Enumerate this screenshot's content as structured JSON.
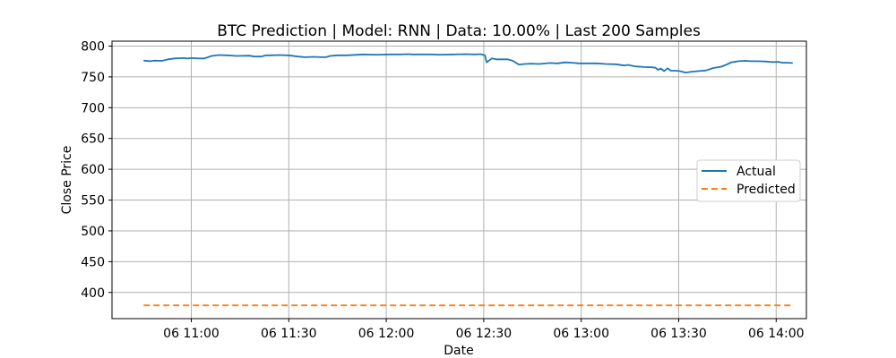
{
  "chart_data": {
    "type": "line",
    "title": "BTC Prediction | Model: RNN | Data: 10.00% | Last 200 Samples",
    "xlabel": "Date",
    "ylabel": "Close Price",
    "x_unit": "minutes after 06 10:00",
    "xlim": [
      35.6,
      249.3
    ],
    "ylim": [
      357.5,
      808
    ],
    "grid": true,
    "legend_position": "center-right",
    "x_ticks": [
      {
        "value": 60,
        "label": "06 11:00"
      },
      {
        "value": 90,
        "label": "06 11:30"
      },
      {
        "value": 120,
        "label": "06 12:00"
      },
      {
        "value": 150,
        "label": "06 12:30"
      },
      {
        "value": 180,
        "label": "06 13:00"
      },
      {
        "value": 210,
        "label": "06 13:30"
      },
      {
        "value": 240,
        "label": "06 14:00"
      }
    ],
    "y_ticks": [
      {
        "value": 400,
        "label": "400"
      },
      {
        "value": 450,
        "label": "450"
      },
      {
        "value": 500,
        "label": "500"
      },
      {
        "value": 550,
        "label": "550"
      },
      {
        "value": 600,
        "label": "600"
      },
      {
        "value": 650,
        "label": "650"
      },
      {
        "value": 700,
        "label": "700"
      },
      {
        "value": 750,
        "label": "750"
      },
      {
        "value": 800,
        "label": "800"
      }
    ],
    "series": [
      {
        "name": "Actual",
        "color": "#1f77b4",
        "style": "solid",
        "x": [
          45.3,
          47.5,
          48.5,
          51.0,
          52.9,
          54.8,
          57.6,
          58.8,
          60.3,
          62.1,
          64.0,
          66.3,
          68.5,
          71.0,
          74.0,
          77.8,
          79.5,
          81.5,
          83.0,
          84.8,
          87.1,
          89.5,
          90.8,
          92.8,
          95.0,
          97.8,
          99.8,
          101.5,
          102.7,
          105.0,
          108.0,
          112.8,
          116.2,
          117.6,
          121.0,
          124.0,
          126.8,
          128.0,
          130.2,
          133.8,
          136.5,
          140.8,
          144.4,
          147.2,
          149.0,
          150.4,
          150.9,
          152.5,
          153.9,
          157.3,
          159.0,
          160.8,
          162.6,
          164.7,
          167.0,
          170.4,
          172.7,
          175.0,
          177.3,
          179.3,
          181.8,
          185.0,
          187.5,
          190.6,
          193.3,
          194.3,
          196.8,
          199.3,
          201.8,
          202.8,
          203.6,
          204.5,
          205.5,
          206.6,
          207.6,
          208.9,
          210.3,
          212.1,
          214.0,
          216.3,
          218.4,
          220.8,
          223.0,
          224.5,
          226.2,
          228.4,
          230.5,
          232.3,
          234.2,
          236.8,
          238.9,
          240.6,
          242.1,
          243.6,
          245.1
        ],
        "y": [
          776.5,
          775.5,
          776.5,
          776.0,
          778.5,
          780.0,
          780.5,
          780.0,
          780.5,
          780.0,
          780.0,
          784.0,
          785.5,
          785.0,
          784.0,
          784.5,
          783.0,
          783.0,
          785.0,
          785.0,
          785.5,
          785.0,
          784.5,
          783.0,
          782.0,
          782.5,
          782.0,
          782.0,
          784.0,
          785.0,
          785.0,
          786.5,
          786.0,
          786.0,
          786.5,
          786.5,
          787.0,
          786.5,
          786.5,
          786.5,
          786.0,
          786.5,
          787.0,
          786.5,
          787.0,
          785.0,
          773.5,
          780.0,
          778.5,
          778.5,
          776.0,
          770.0,
          771.0,
          771.5,
          771.0,
          772.5,
          772.0,
          773.5,
          773.0,
          772.0,
          772.0,
          772.0,
          771.0,
          770.5,
          768.5,
          769.5,
          767.0,
          766.0,
          765.5,
          765.0,
          761.5,
          763.5,
          759.5,
          764.0,
          760.0,
          760.0,
          759.5,
          757.0,
          758.5,
          759.5,
          760.5,
          764.5,
          766.5,
          769.5,
          773.5,
          775.5,
          776.0,
          775.5,
          775.5,
          775.0,
          774.0,
          774.5,
          773.0,
          773.0,
          772.5
        ]
      },
      {
        "name": "Predicted",
        "color": "#ff7f0e",
        "style": "dashed",
        "x": [
          45.3,
          245.1
        ],
        "y": [
          379.0,
          379.0
        ]
      }
    ]
  }
}
